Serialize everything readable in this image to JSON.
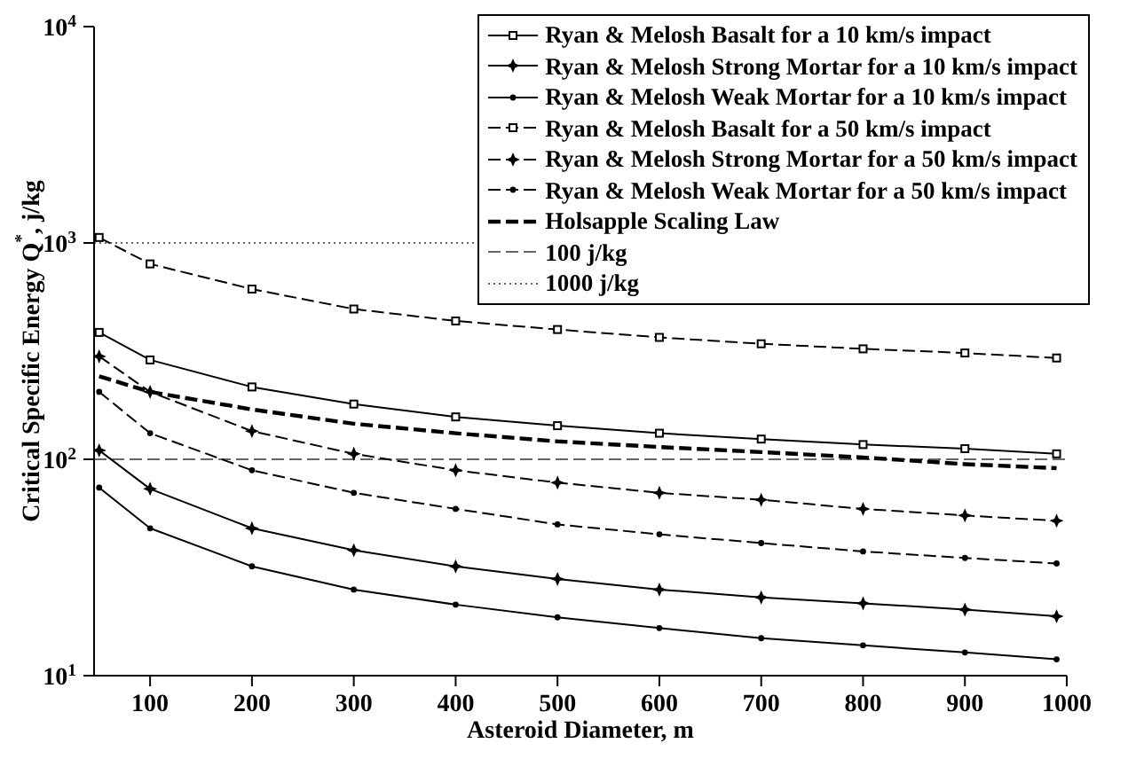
{
  "chart_data": {
    "type": "line",
    "xlabel": "Asteroid Diameter, m",
    "ylabel": "Critical Specific Energy Q$^{*}$, j/kg",
    "x": [
      50,
      100,
      200,
      300,
      400,
      500,
      600,
      700,
      800,
      900,
      990
    ],
    "series": [
      {
        "name": "Ryan & Melosh Basalt for a 10 km/s impact",
        "color": "#000000",
        "marker": "square",
        "line_style": "solid",
        "values": [
          386,
          288,
          216,
          180,
          157,
          143,
          132,
          124,
          117,
          112,
          106
        ]
      },
      {
        "name": "Ryan & Melosh Strong Mortar for a 10 km/s impact",
        "color": "#000000",
        "marker": "star",
        "line_style": "solid",
        "values": [
          110,
          73,
          48,
          38,
          32,
          28,
          25,
          23,
          21.6,
          20.2,
          18.8
        ]
      },
      {
        "name": "Ryan & Melosh Weak Mortar for a 10 km/s impact",
        "color": "#000000",
        "marker": "circle",
        "line_style": "solid",
        "values": [
          74,
          48,
          32,
          25,
          21.3,
          18.6,
          16.6,
          14.9,
          13.8,
          12.8,
          11.9
        ]
      },
      {
        "name": "Ryan & Melosh Basalt for a 50 km/s impact",
        "color": "#000000",
        "marker": "square",
        "line_style": "dashed",
        "values": [
          1060,
          800,
          612,
          495,
          436,
          398,
          366,
          342,
          324,
          310,
          294
        ]
      },
      {
        "name": "Ryan & Melosh Strong Mortar for a 50 km/s impact",
        "color": "#000000",
        "marker": "star",
        "line_style": "dashed",
        "values": [
          299,
          205,
          135,
          106,
          89,
          78,
          70,
          65,
          59,
          55,
          52
        ]
      },
      {
        "name": "Ryan & Melosh Weak Mortar for a 50 km/s impact",
        "color": "#000000",
        "marker": "circle",
        "line_style": "dashed",
        "values": [
          205,
          132,
          89,
          70,
          59,
          50,
          45,
          41,
          37.5,
          35,
          33
        ]
      },
      {
        "name": "Holsapple Scaling Law",
        "color": "#000000",
        "marker": "none",
        "line_style": "dashed",
        "values": [
          242,
          205,
          170,
          146,
          132,
          121,
          114,
          108,
          102,
          95,
          91
        ]
      }
    ],
    "ref_lines": [
      {
        "axis": "y",
        "value": 100,
        "label": "100 j/kg",
        "color": "#666666",
        "line_style": "dashed"
      },
      {
        "axis": "y",
        "value": 1000,
        "label": "1000 j/kg",
        "color": "#666666",
        "line_style": "dotted"
      }
    ],
    "log": "y",
    "xlim": [
      45,
      1000
    ],
    "xticks": [
      100,
      200,
      300,
      400,
      500,
      600,
      700,
      800,
      900,
      1000
    ],
    "ylim": [
      10,
      10000
    ],
    "yticks": [
      {
        "value": 10,
        "label": "10$^{1}$"
      },
      {
        "value": 100,
        "label": "10$^{2}$"
      },
      {
        "value": 1000,
        "label": "10$^{3}$"
      },
      {
        "value": 10000,
        "label": "10$^{4}$"
      }
    ],
    "legend": "top right"
  }
}
